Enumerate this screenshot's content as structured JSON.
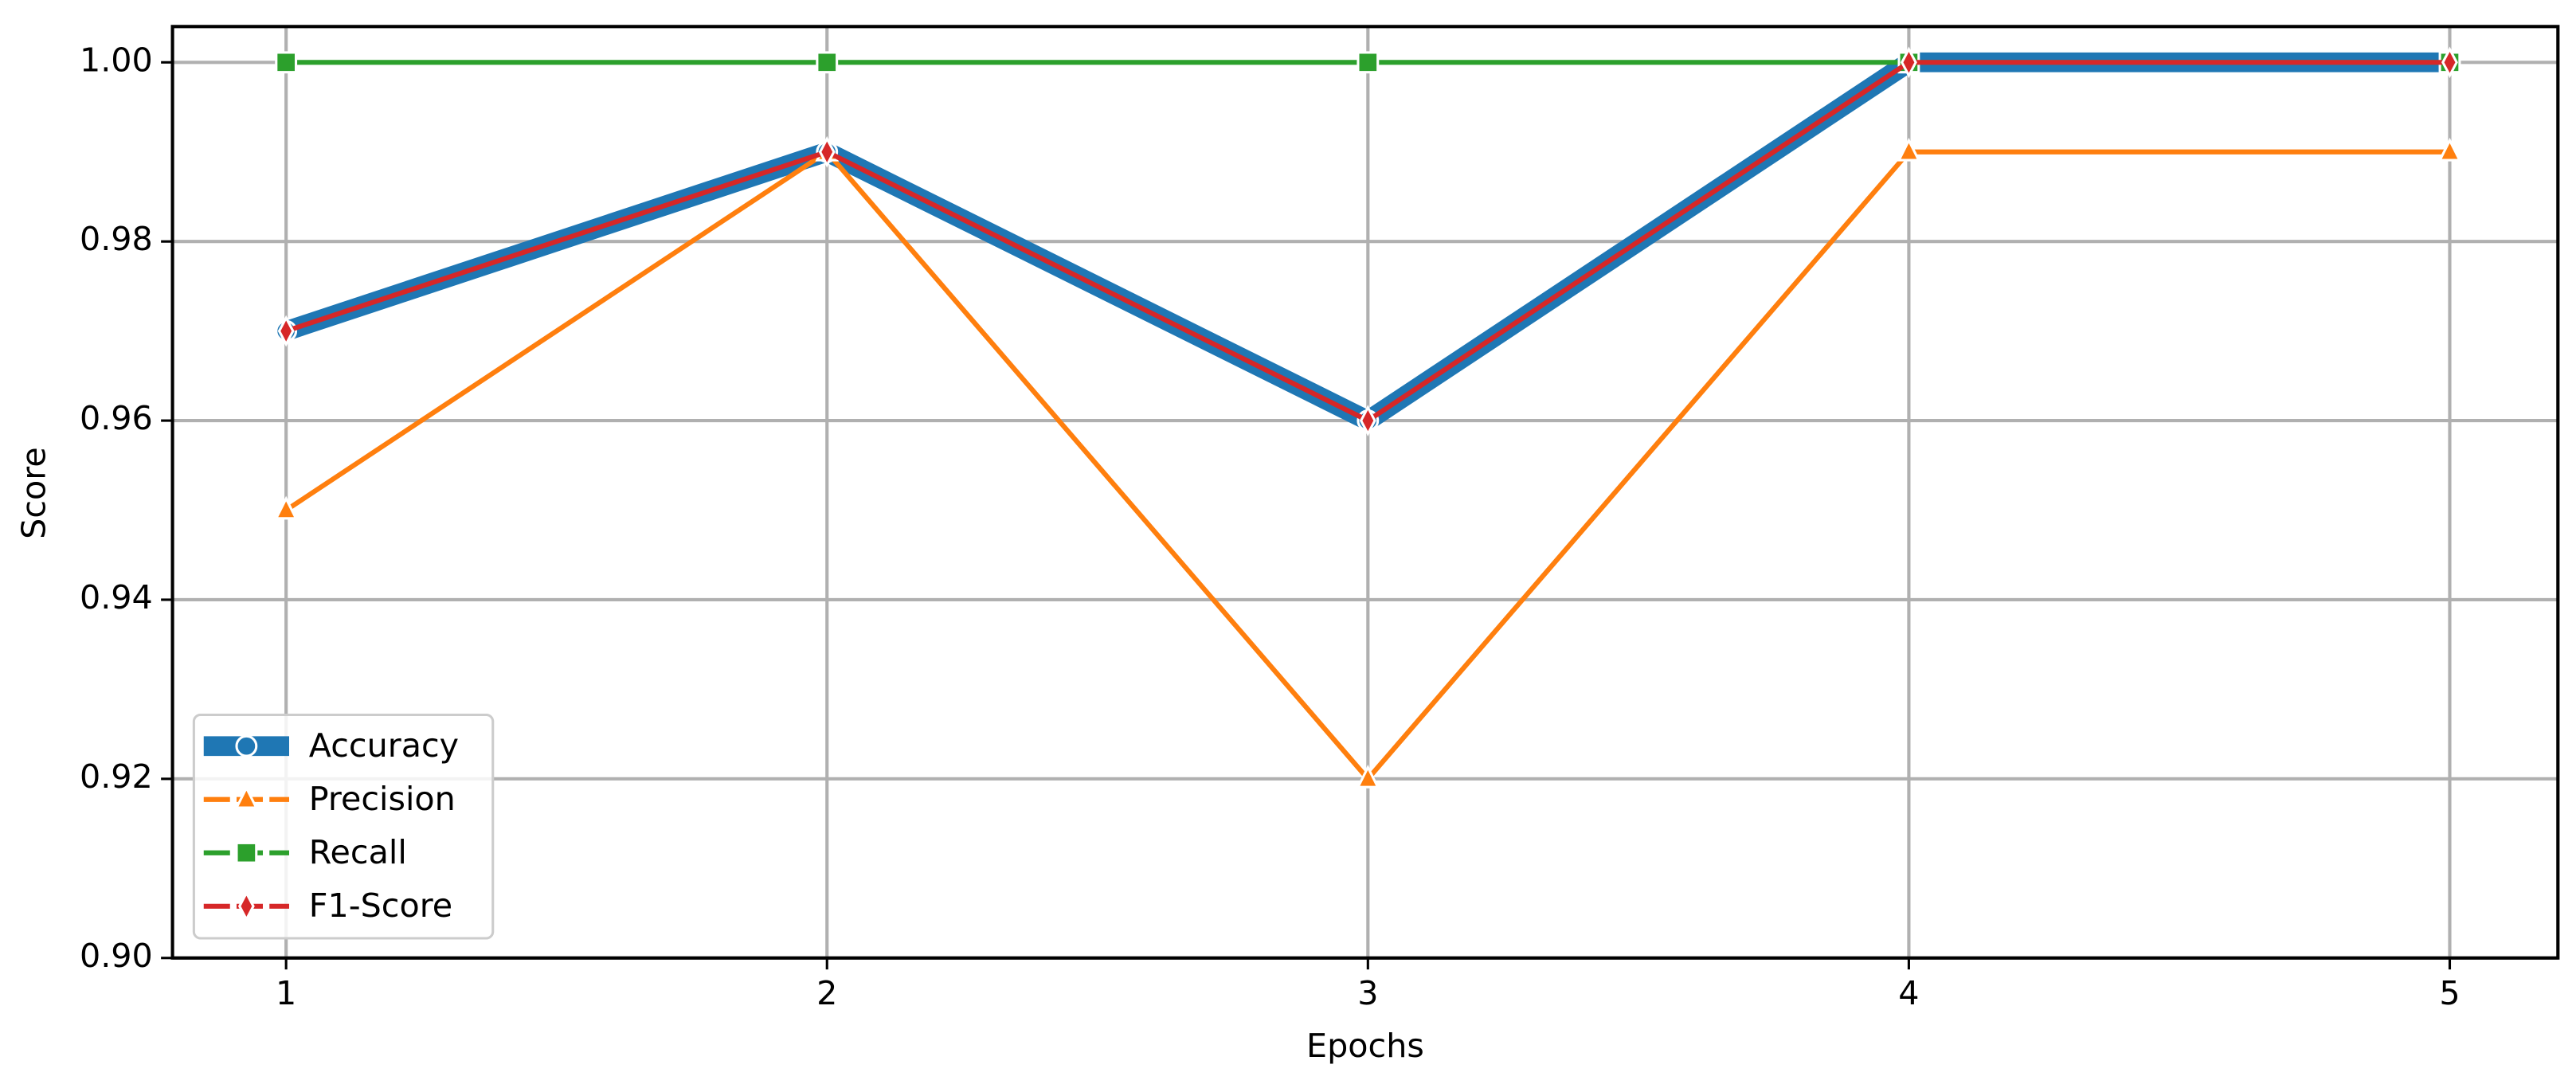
{
  "chart_data": {
    "type": "line",
    "x_label": "Epochs",
    "y_label": "Score",
    "x": [
      1,
      2,
      3,
      4,
      5
    ],
    "series": [
      {
        "name": "Accuracy",
        "color": "#1f77b4",
        "marker": "circle",
        "linewidth": 12,
        "values": [
          0.97,
          0.99,
          0.96,
          1.0,
          1.0
        ]
      },
      {
        "name": "Precision",
        "color": "#ff7f0e",
        "marker": "triangle",
        "linewidth": 3,
        "values": [
          0.95,
          0.99,
          0.92,
          0.99,
          0.99
        ]
      },
      {
        "name": "Recall",
        "color": "#2ca02c",
        "marker": "square",
        "linewidth": 3,
        "values": [
          1.0,
          1.0,
          1.0,
          1.0,
          1.0
        ]
      },
      {
        "name": "F1-Score",
        "color": "#d62728",
        "marker": "diamond",
        "linewidth": 3,
        "values": [
          0.97,
          0.99,
          0.96,
          1.0,
          1.0
        ]
      }
    ],
    "xlim": [
      0.79,
      5.2
    ],
    "ylim": [
      0.9,
      1.004
    ],
    "xticks": [
      1,
      2,
      3,
      4,
      5
    ],
    "yticks": [
      {
        "value": 0.9,
        "label": "0.90"
      },
      0.92,
      0.94,
      0.96,
      0.98,
      {
        "value": 1,
        "label": "1.00"
      }
    ],
    "grid": true,
    "legend": "lower left"
  }
}
